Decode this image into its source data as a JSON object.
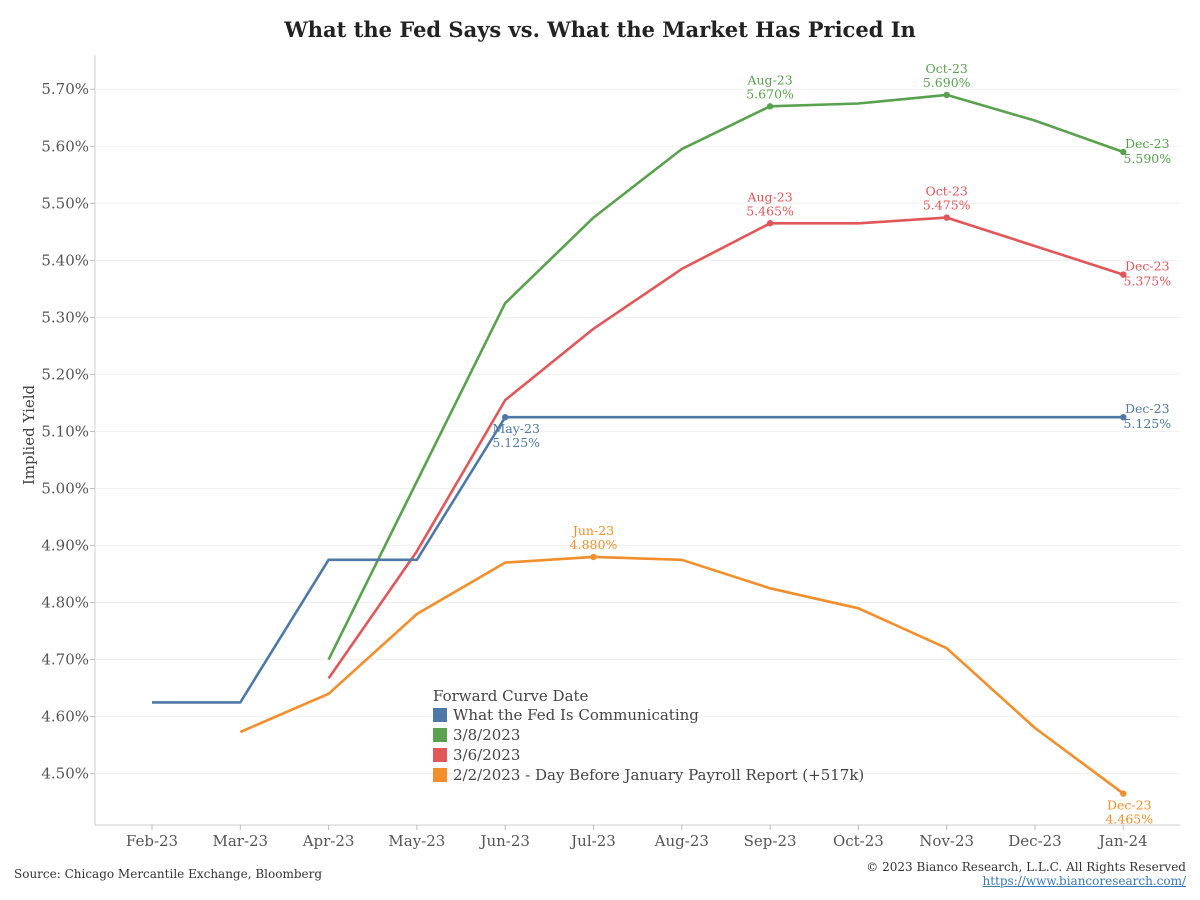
{
  "chart_data": {
    "type": "line",
    "title": "What the Fed Says vs. What the Market Has Priced In",
    "xlabel": "",
    "ylabel": "Implied Yield",
    "categories": [
      "Feb-23",
      "Mar-23",
      "Apr-23",
      "May-23",
      "Jun-23",
      "Jul-23",
      "Aug-23",
      "Sep-23",
      "Oct-23",
      "Nov-23",
      "Dec-23",
      "Jan-24"
    ],
    "ylim": [
      4.41,
      5.76
    ],
    "yticks": [
      4.5,
      4.6,
      4.7,
      4.8,
      4.9,
      5.0,
      5.1,
      5.2,
      5.3,
      5.4,
      5.5,
      5.6,
      5.7
    ],
    "ytick_labels": [
      "4.50%",
      "4.60%",
      "4.70%",
      "4.80%",
      "4.90%",
      "5.00%",
      "5.10%",
      "5.20%",
      "5.30%",
      "5.40%",
      "5.50%",
      "5.60%",
      "5.70%"
    ],
    "legend": {
      "title": "Forward Curve Date",
      "position": "bottom-center"
    },
    "series": [
      {
        "name": "What the Fed Is Communicating",
        "color": "#4e79a7",
        "points": [
          {
            "x": 0,
            "y": 4.625
          },
          {
            "x": 1,
            "y": 4.625
          },
          {
            "x": 2,
            "y": 4.875
          },
          {
            "x": 3,
            "y": 4.875
          },
          {
            "x": 4,
            "y": 5.125
          },
          {
            "x": 11,
            "y": 5.125
          }
        ],
        "annotations": [
          {
            "x": 4,
            "y": 5.125,
            "label": "May-23",
            "value": "5.125%",
            "pos": "below"
          },
          {
            "x": 11,
            "y": 5.125,
            "label": "Dec-23",
            "value": "5.125%",
            "pos": "right"
          }
        ]
      },
      {
        "name": "3/8/2023",
        "color": "#59a14f",
        "points": [
          {
            "x": 2,
            "y": 4.7
          },
          {
            "x": 4,
            "y": 5.325
          },
          {
            "x": 5,
            "y": 5.475
          },
          {
            "x": 6,
            "y": 5.595
          },
          {
            "x": 7,
            "y": 5.67
          },
          {
            "x": 8,
            "y": 5.675
          },
          {
            "x": 9,
            "y": 5.69
          },
          {
            "x": 10,
            "y": 5.645
          },
          {
            "x": 11,
            "y": 5.59
          }
        ],
        "annotations": [
          {
            "x": 7,
            "y": 5.67,
            "label": "Aug-23",
            "value": "5.670%",
            "pos": "above"
          },
          {
            "x": 9,
            "y": 5.69,
            "label": "Oct-23",
            "value": "5.690%",
            "pos": "above"
          },
          {
            "x": 11,
            "y": 5.59,
            "label": "Dec-23",
            "value": "5.590%",
            "pos": "right"
          }
        ]
      },
      {
        "name": "3/6/2023",
        "color": "#e15759",
        "points": [
          {
            "x": 2,
            "y": 4.667
          },
          {
            "x": 3,
            "y": 4.89
          },
          {
            "x": 4,
            "y": 5.155
          },
          {
            "x": 5,
            "y": 5.28
          },
          {
            "x": 6,
            "y": 5.385
          },
          {
            "x": 7,
            "y": 5.465
          },
          {
            "x": 8,
            "y": 5.465
          },
          {
            "x": 9,
            "y": 5.475
          },
          {
            "x": 10,
            "y": 5.425
          },
          {
            "x": 11,
            "y": 5.375
          }
        ],
        "annotations": [
          {
            "x": 7,
            "y": 5.465,
            "label": "Aug-23",
            "value": "5.465%",
            "pos": "above"
          },
          {
            "x": 9,
            "y": 5.475,
            "label": "Oct-23",
            "value": "5.475%",
            "pos": "above"
          },
          {
            "x": 11,
            "y": 5.375,
            "label": "Dec-23",
            "value": "5.375%",
            "pos": "right"
          }
        ]
      },
      {
        "name": "2/2/2023 - Day Before January Payroll Report (+517k)",
        "color": "#f28e2b",
        "points": [
          {
            "x": 1,
            "y": 4.573
          },
          {
            "x": 2,
            "y": 4.64
          },
          {
            "x": 3,
            "y": 4.78
          },
          {
            "x": 4,
            "y": 4.87
          },
          {
            "x": 5,
            "y": 4.88
          },
          {
            "x": 6,
            "y": 4.875
          },
          {
            "x": 7,
            "y": 4.825
          },
          {
            "x": 8,
            "y": 4.79
          },
          {
            "x": 9,
            "y": 4.72
          },
          {
            "x": 10,
            "y": 4.58
          },
          {
            "x": 11,
            "y": 4.465
          }
        ],
        "annotations": [
          {
            "x": 5,
            "y": 4.88,
            "label": "Jun-23",
            "value": "4.880%",
            "pos": "above"
          },
          {
            "x": 11,
            "y": 4.465,
            "label": "Dec-23",
            "value": "4.465%",
            "pos": "below"
          }
        ]
      }
    ],
    "legend_order": [
      0,
      1,
      2,
      3
    ]
  },
  "footer": {
    "source": "Source: Chicago Mercantile Exchange, Bloomberg",
    "copyright": "© 2023 Bianco Research, L.L.C. All Rights Reserved",
    "url": "https://www.biancoresearch.com/"
  }
}
